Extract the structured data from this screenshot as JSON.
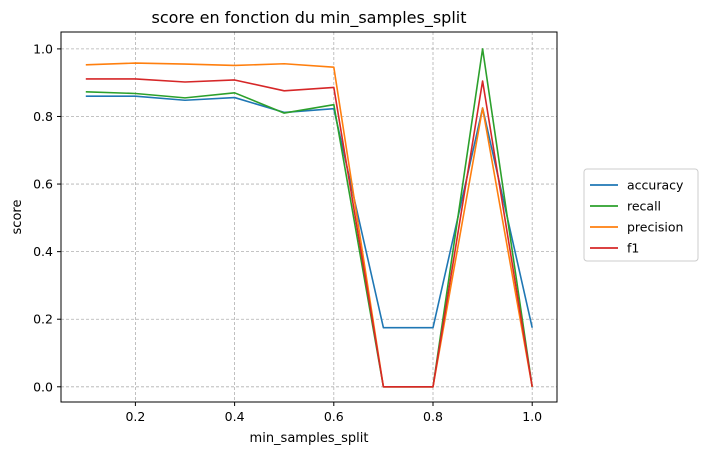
{
  "chart_data": {
    "type": "line",
    "title": "score en fonction du min_samples_split",
    "xlabel": "min_samples_split",
    "ylabel": "score",
    "x": [
      0.1,
      0.2,
      0.3,
      0.4,
      0.5,
      0.6,
      0.7,
      0.8,
      0.9,
      1.0
    ],
    "xlim": [
      0.05,
      1.05
    ],
    "ylim": [
      -0.045,
      1.05
    ],
    "xticks": [
      "0.2",
      "0.4",
      "0.6",
      "0.8",
      "1.0"
    ],
    "yticks": [
      "0.0",
      "0.2",
      "0.4",
      "0.6",
      "0.8",
      "1.0"
    ],
    "grid": true,
    "legend_position": "right",
    "series": [
      {
        "name": "accuracy",
        "color": "#1f77b4",
        "values": [
          0.86,
          0.86,
          0.848,
          0.856,
          0.812,
          0.823,
          0.175,
          0.175,
          0.825,
          0.175
        ]
      },
      {
        "name": "recall",
        "color": "#2ca02c",
        "values": [
          0.873,
          0.868,
          0.855,
          0.87,
          0.81,
          0.835,
          0.0,
          0.0,
          1.0,
          0.0
        ]
      },
      {
        "name": "precision",
        "color": "#ff7f0e",
        "values": [
          0.953,
          0.958,
          0.955,
          0.951,
          0.956,
          0.946,
          0.0,
          0.0,
          0.825,
          0.0
        ]
      },
      {
        "name": "f1",
        "color": "#d62728",
        "values": [
          0.911,
          0.911,
          0.902,
          0.908,
          0.876,
          0.886,
          0.0,
          0.0,
          0.905,
          0.0
        ]
      }
    ]
  }
}
